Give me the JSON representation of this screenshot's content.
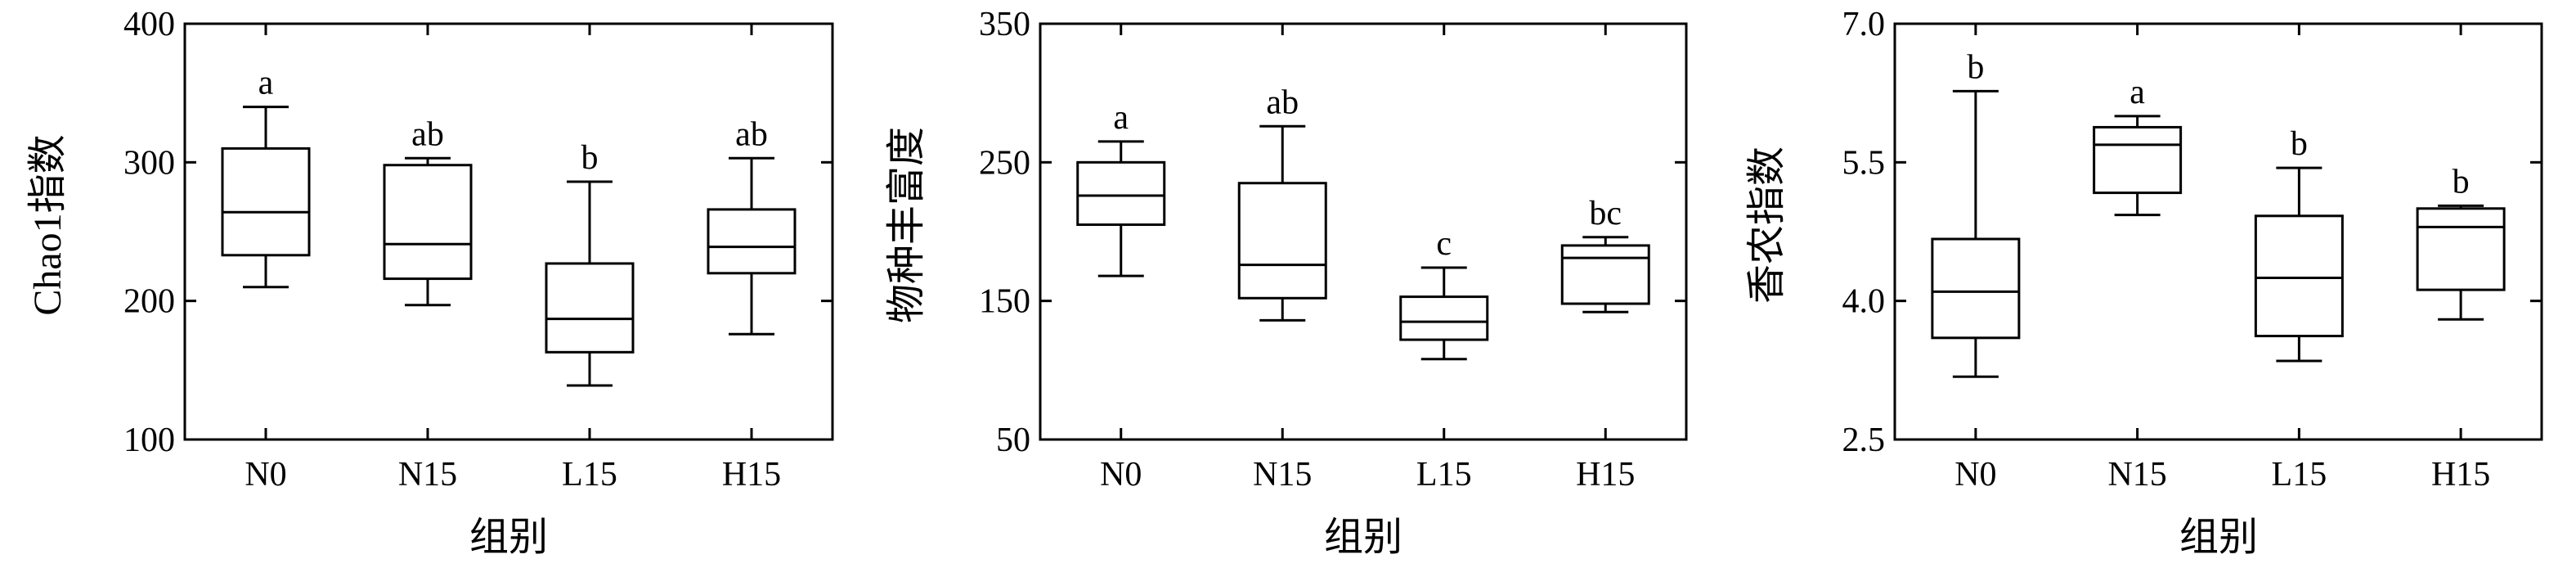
{
  "chart_data": [
    {
      "type": "box",
      "ylabel": "Chao1指数",
      "xlabel": "组别",
      "ylim": [
        100,
        400
      ],
      "yticks": [
        "100",
        "200",
        "300",
        "400"
      ],
      "categories": [
        "N0",
        "N15",
        "L15",
        "H15"
      ],
      "boxes": [
        {
          "min": 210,
          "q1": 233,
          "median": 264,
          "q3": 310,
          "max": 340,
          "label": "a"
        },
        {
          "min": 197,
          "q1": 216,
          "median": 241,
          "q3": 298,
          "max": 303,
          "label": "ab"
        },
        {
          "min": 139,
          "q1": 163,
          "median": 187,
          "q3": 227,
          "max": 286,
          "label": "b"
        },
        {
          "min": 176,
          "q1": 220,
          "median": 239,
          "q3": 266,
          "max": 303,
          "label": "ab"
        }
      ]
    },
    {
      "type": "box",
      "ylabel": "物种丰富度",
      "xlabel": "组别",
      "ylim": [
        50,
        350
      ],
      "yticks": [
        "50",
        "150",
        "250",
        "350"
      ],
      "categories": [
        "N0",
        "N15",
        "L15",
        "H15"
      ],
      "boxes": [
        {
          "min": 168,
          "q1": 205,
          "median": 226,
          "q3": 250,
          "max": 265,
          "label": "a"
        },
        {
          "min": 136,
          "q1": 152,
          "median": 176,
          "q3": 235,
          "max": 276,
          "label": "ab"
        },
        {
          "min": 108,
          "q1": 122,
          "median": 135,
          "q3": 153,
          "max": 174,
          "label": "c"
        },
        {
          "min": 142,
          "q1": 148,
          "median": 181,
          "q3": 190,
          "max": 196,
          "label": "bc"
        }
      ]
    },
    {
      "type": "box",
      "ylabel": "香农指数",
      "xlabel": "组别",
      "ylim": [
        2.5,
        7.0
      ],
      "yticks": [
        "2.5",
        "4.0",
        "5.5",
        "7.0"
      ],
      "categories": [
        "N0",
        "N15",
        "L15",
        "H15"
      ],
      "boxes": [
        {
          "min": 3.18,
          "q1": 3.6,
          "median": 4.1,
          "q3": 4.67,
          "max": 6.27,
          "label": "b"
        },
        {
          "min": 4.93,
          "q1": 5.17,
          "median": 5.69,
          "q3": 5.88,
          "max": 6.0,
          "label": "a"
        },
        {
          "min": 3.35,
          "q1": 3.62,
          "median": 4.25,
          "q3": 4.92,
          "max": 5.44,
          "label": "b"
        },
        {
          "min": 3.8,
          "q1": 4.12,
          "median": 4.8,
          "q3": 5.0,
          "max": 5.03,
          "label": "b"
        }
      ]
    }
  ]
}
